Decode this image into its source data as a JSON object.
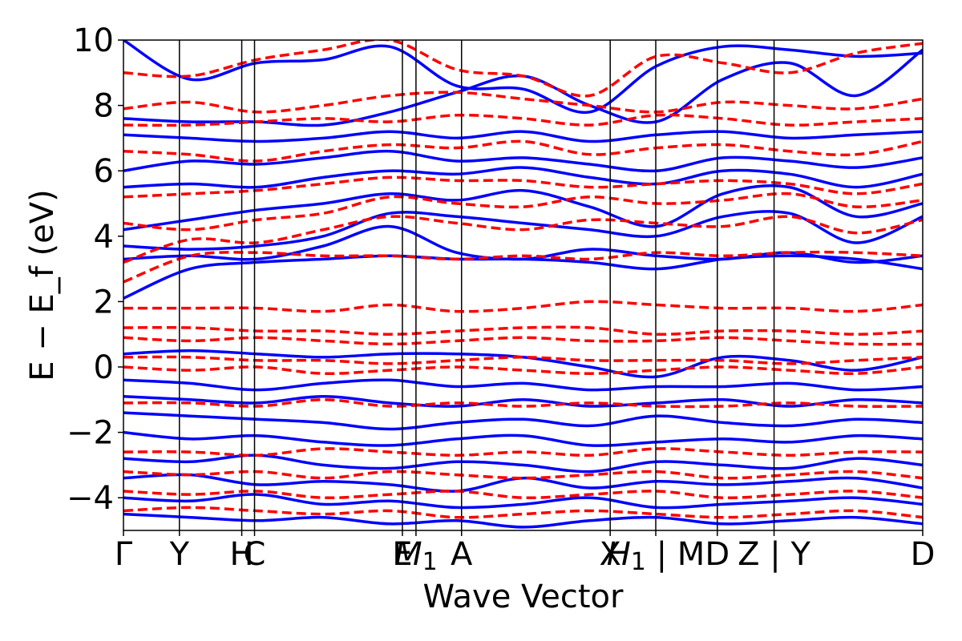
{
  "chart_data": {
    "type": "line",
    "title": "",
    "xlabel": "Wave Vector",
    "ylabel": "E − E_f (eV)",
    "ylim": [
      -5,
      10
    ],
    "yticks": [
      -4,
      -2,
      0,
      2,
      4,
      6,
      8,
      10
    ],
    "ytick_labels": [
      "−4",
      "−2",
      "0",
      "2",
      "4",
      "6",
      "8",
      "10"
    ],
    "xlim": [
      0,
      1
    ],
    "kpath_ticks": [
      {
        "label": "Γ",
        "x": 0.0
      },
      {
        "label": "Y",
        "x": 0.07
      },
      {
        "label": "H",
        "x": 0.148
      },
      {
        "label": "C",
        "x": 0.164
      },
      {
        "label": "E",
        "x": 0.349
      },
      {
        "label": "M_1",
        "x": 0.366
      },
      {
        "label": "A",
        "x": 0.423
      },
      {
        "label": "X",
        "x": 0.609
      },
      {
        "label": "H_1 | M",
        "x": 0.666
      },
      {
        "label": "D",
        "x": 0.743
      },
      {
        "label": "Z | Y",
        "x": 0.814
      },
      {
        "label": "D",
        "x": 1.0
      }
    ],
    "grid": false,
    "series": [
      {
        "color": "#0000ff",
        "style": "solid",
        "bands": [
          [
            2.1,
            3.0,
            3.2,
            3.3,
            3.4,
            3.3,
            3.3,
            3.2,
            3.0,
            3.3,
            3.4,
            3.3,
            3.0
          ],
          [
            3.3,
            3.4,
            3.3,
            3.7,
            4.3,
            3.5,
            3.3,
            3.6,
            3.4,
            3.3,
            3.5,
            3.2,
            3.4
          ],
          [
            3.7,
            3.6,
            3.7,
            4.0,
            4.7,
            4.6,
            4.4,
            4.2,
            4.0,
            4.6,
            4.7,
            3.8,
            4.6
          ],
          [
            4.2,
            4.5,
            4.8,
            5.0,
            5.3,
            5.1,
            5.4,
            4.9,
            4.3,
            5.3,
            5.5,
            4.6,
            5.0
          ],
          [
            5.5,
            5.6,
            5.5,
            5.8,
            6.0,
            5.9,
            6.1,
            5.8,
            5.6,
            6.0,
            5.9,
            5.5,
            5.9
          ],
          [
            6.0,
            6.3,
            6.2,
            6.4,
            6.6,
            6.3,
            6.4,
            6.2,
            6.0,
            6.4,
            6.3,
            6.1,
            6.4
          ],
          [
            7.1,
            7.0,
            6.9,
            7.0,
            7.2,
            7.0,
            7.2,
            6.9,
            7.1,
            7.2,
            7.0,
            7.1,
            7.2
          ],
          [
            7.6,
            7.5,
            7.5,
            7.4,
            7.8,
            8.4,
            8.9,
            8.0,
            7.5,
            8.8,
            9.3,
            8.3,
            9.7
          ],
          [
            10.0,
            8.8,
            9.3,
            9.4,
            9.8,
            8.6,
            8.5,
            7.8,
            9.2,
            9.8,
            9.7,
            9.5,
            9.6
          ],
          [
            0.4,
            0.5,
            0.4,
            0.3,
            0.4,
            0.4,
            0.3,
            0.0,
            -0.3,
            0.3,
            0.2,
            -0.1,
            0.3
          ],
          [
            -0.4,
            -0.5,
            -0.7,
            -0.5,
            -0.4,
            -0.6,
            -0.5,
            -0.7,
            -0.6,
            -0.6,
            -0.5,
            -0.7,
            -0.6
          ],
          [
            -0.9,
            -1.0,
            -1.1,
            -0.9,
            -1.1,
            -1.2,
            -1.0,
            -1.2,
            -1.1,
            -1.0,
            -1.2,
            -1.0,
            -1.1
          ],
          [
            -1.4,
            -1.5,
            -1.6,
            -1.7,
            -1.9,
            -1.7,
            -1.6,
            -1.8,
            -1.5,
            -1.7,
            -1.8,
            -1.6,
            -1.7
          ],
          [
            -2.0,
            -2.2,
            -2.1,
            -2.3,
            -2.4,
            -2.2,
            -2.1,
            -2.4,
            -2.3,
            -2.2,
            -2.3,
            -2.1,
            -2.2
          ],
          [
            -2.8,
            -2.9,
            -2.7,
            -3.0,
            -3.1,
            -2.9,
            -3.0,
            -3.2,
            -2.9,
            -3.0,
            -3.1,
            -2.8,
            -3.0
          ],
          [
            -3.4,
            -3.3,
            -3.6,
            -3.5,
            -3.6,
            -3.8,
            -3.4,
            -3.7,
            -3.5,
            -3.6,
            -3.5,
            -3.4,
            -3.7
          ],
          [
            -4.0,
            -4.1,
            -3.9,
            -4.2,
            -4.1,
            -4.3,
            -4.2,
            -4.0,
            -4.3,
            -4.2,
            -4.1,
            -4.0,
            -4.2
          ],
          [
            -4.5,
            -4.6,
            -4.7,
            -4.6,
            -4.8,
            -4.7,
            -4.9,
            -4.7,
            -4.6,
            -4.8,
            -4.7,
            -4.6,
            -4.8
          ]
        ]
      },
      {
        "color": "#ff0000",
        "style": "dashed",
        "bands": [
          [
            2.6,
            3.4,
            3.5,
            3.4,
            3.4,
            3.3,
            3.4,
            3.3,
            3.5,
            3.4,
            3.5,
            3.5,
            3.4
          ],
          [
            3.2,
            3.9,
            3.8,
            4.2,
            4.6,
            4.4,
            4.2,
            4.5,
            4.4,
            4.3,
            4.6,
            4.1,
            4.5
          ],
          [
            4.4,
            4.2,
            4.5,
            4.7,
            5.2,
            5.0,
            4.9,
            5.2,
            5.0,
            5.1,
            5.3,
            4.9,
            5.1
          ],
          [
            5.2,
            5.3,
            5.4,
            5.6,
            5.8,
            5.7,
            5.7,
            5.5,
            5.6,
            5.7,
            5.6,
            5.3,
            5.6
          ],
          [
            6.6,
            6.5,
            6.3,
            6.6,
            6.8,
            6.7,
            6.9,
            6.5,
            6.7,
            6.8,
            6.6,
            6.5,
            6.9
          ],
          [
            7.4,
            7.4,
            7.5,
            7.6,
            7.5,
            7.7,
            7.6,
            7.4,
            7.7,
            7.6,
            7.4,
            7.5,
            7.6
          ],
          [
            7.9,
            8.1,
            7.8,
            8.0,
            8.3,
            8.4,
            8.2,
            8.0,
            7.8,
            8.1,
            8.0,
            7.9,
            8.2
          ],
          [
            9.0,
            8.9,
            9.4,
            9.7,
            10.0,
            9.1,
            8.9,
            8.3,
            9.5,
            9.3,
            9.0,
            9.6,
            9.9
          ],
          [
            1.8,
            1.8,
            1.8,
            1.7,
            1.9,
            1.7,
            1.8,
            2.0,
            1.9,
            1.8,
            1.8,
            1.7,
            1.9
          ],
          [
            1.2,
            1.2,
            1.1,
            1.1,
            1.0,
            1.1,
            1.2,
            1.2,
            1.0,
            1.1,
            1.1,
            1.0,
            1.1
          ],
          [
            0.9,
            0.8,
            0.9,
            0.8,
            0.7,
            0.8,
            0.9,
            0.8,
            0.8,
            0.9,
            0.8,
            0.7,
            0.7
          ],
          [
            0.3,
            0.3,
            0.2,
            0.2,
            0.1,
            0.2,
            0.3,
            0.2,
            0.2,
            0.2,
            0.1,
            0.2,
            0.3
          ],
          [
            0.0,
            -0.1,
            0.0,
            -0.2,
            -0.1,
            0.0,
            -0.1,
            -0.2,
            -0.1,
            0.0,
            -0.1,
            -0.2,
            0.0
          ],
          [
            -1.1,
            -1.1,
            -1.2,
            -1.0,
            -1.2,
            -1.1,
            -1.2,
            -1.1,
            -1.2,
            -1.2,
            -1.1,
            -1.2,
            -1.2
          ],
          [
            -2.6,
            -2.6,
            -2.7,
            -2.5,
            -2.6,
            -2.7,
            -2.6,
            -2.7,
            -2.5,
            -2.6,
            -2.7,
            -2.6,
            -2.6
          ],
          [
            -3.2,
            -3.3,
            -3.2,
            -3.4,
            -3.2,
            -3.3,
            -3.4,
            -3.3,
            -3.2,
            -3.4,
            -3.3,
            -3.2,
            -3.4
          ],
          [
            -3.8,
            -3.9,
            -3.8,
            -4.0,
            -3.9,
            -3.8,
            -4.0,
            -3.9,
            -3.8,
            -4.0,
            -3.9,
            -3.8,
            -4.0
          ],
          [
            -4.4,
            -4.3,
            -4.4,
            -4.5,
            -4.4,
            -4.6,
            -4.5,
            -4.4,
            -4.5,
            -4.6,
            -4.5,
            -4.4,
            -4.6
          ]
        ]
      }
    ]
  }
}
